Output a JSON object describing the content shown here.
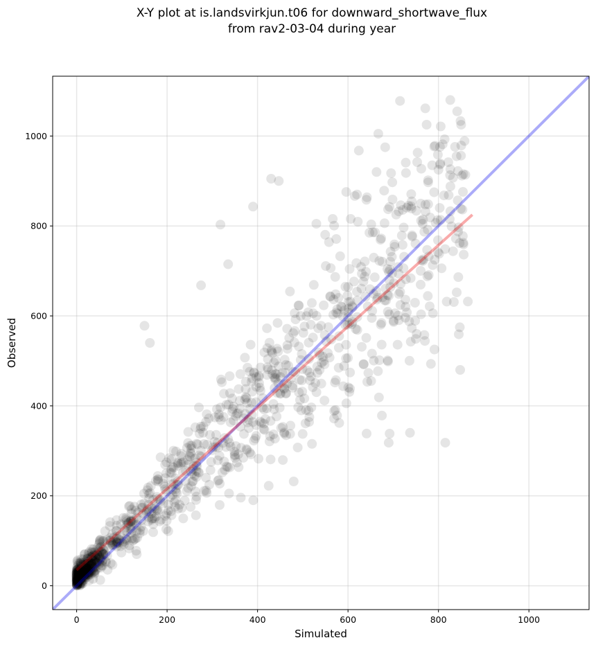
{
  "chart_data": {
    "type": "scatter",
    "title_lines": [
      "X-Y plot at is.landsvirkjun.t06 for downward_shortwave_flux",
      "from rav2-03-04 during year"
    ],
    "xlabel": "Simulated",
    "ylabel": "Observed",
    "xlim": [
      -53,
      1133
    ],
    "ylim": [
      -53,
      1133
    ],
    "xticks": [
      0,
      200,
      400,
      600,
      800,
      1000
    ],
    "yticks": [
      0,
      200,
      400,
      600,
      800,
      1000
    ],
    "grid": true,
    "point_color": "#000000",
    "point_alpha": 0.1,
    "one_to_one_line": {
      "color": "#0000ee",
      "alpha": 0.33,
      "x": [
        -53,
        1133
      ],
      "y": [
        -53,
        1133
      ]
    },
    "fit_line": {
      "color": "#ee0000",
      "alpha": 0.33,
      "x": [
        0,
        875
      ],
      "y": [
        35,
        825
      ]
    },
    "notable_points": [
      [
        715,
        1078
      ],
      [
        667,
        1005
      ],
      [
        663,
        920
      ],
      [
        430,
        905
      ],
      [
        447,
        900
      ],
      [
        390,
        843
      ],
      [
        318,
        803
      ],
      [
        840,
        955
      ],
      [
        800,
        925
      ],
      [
        855,
        915
      ],
      [
        815,
        318
      ],
      [
        848,
        480
      ],
      [
        865,
        632
      ],
      [
        150,
        578
      ],
      [
        162,
        540
      ],
      [
        275,
        668
      ],
      [
        335,
        715
      ],
      [
        530,
        805
      ],
      [
        620,
        870
      ],
      [
        737,
        340
      ],
      [
        690,
        318
      ],
      [
        480,
        232
      ]
    ],
    "dense_origin_points": [
      [
        0,
        2
      ],
      [
        1,
        4
      ],
      [
        2,
        6
      ],
      [
        3,
        8
      ],
      [
        4,
        3
      ],
      [
        5,
        9
      ],
      [
        6,
        12
      ],
      [
        7,
        5
      ],
      [
        8,
        14
      ],
      [
        9,
        10
      ],
      [
        10,
        16
      ],
      [
        11,
        7
      ],
      [
        12,
        20
      ],
      [
        13,
        11
      ],
      [
        14,
        18
      ],
      [
        15,
        22
      ],
      [
        16,
        13
      ],
      [
        18,
        25
      ],
      [
        20,
        17
      ],
      [
        22,
        28
      ],
      [
        24,
        20
      ],
      [
        26,
        32
      ],
      [
        28,
        24
      ],
      [
        30,
        36
      ],
      [
        32,
        27
      ],
      [
        35,
        42
      ],
      [
        38,
        30
      ],
      [
        40,
        48
      ],
      [
        42,
        35
      ],
      [
        45,
        55
      ],
      [
        48,
        40
      ],
      [
        50,
        62
      ],
      [
        55,
        45
      ],
      [
        60,
        70
      ],
      [
        65,
        52
      ]
    ],
    "random_seed": 42,
    "scatter_count": 1100
  }
}
